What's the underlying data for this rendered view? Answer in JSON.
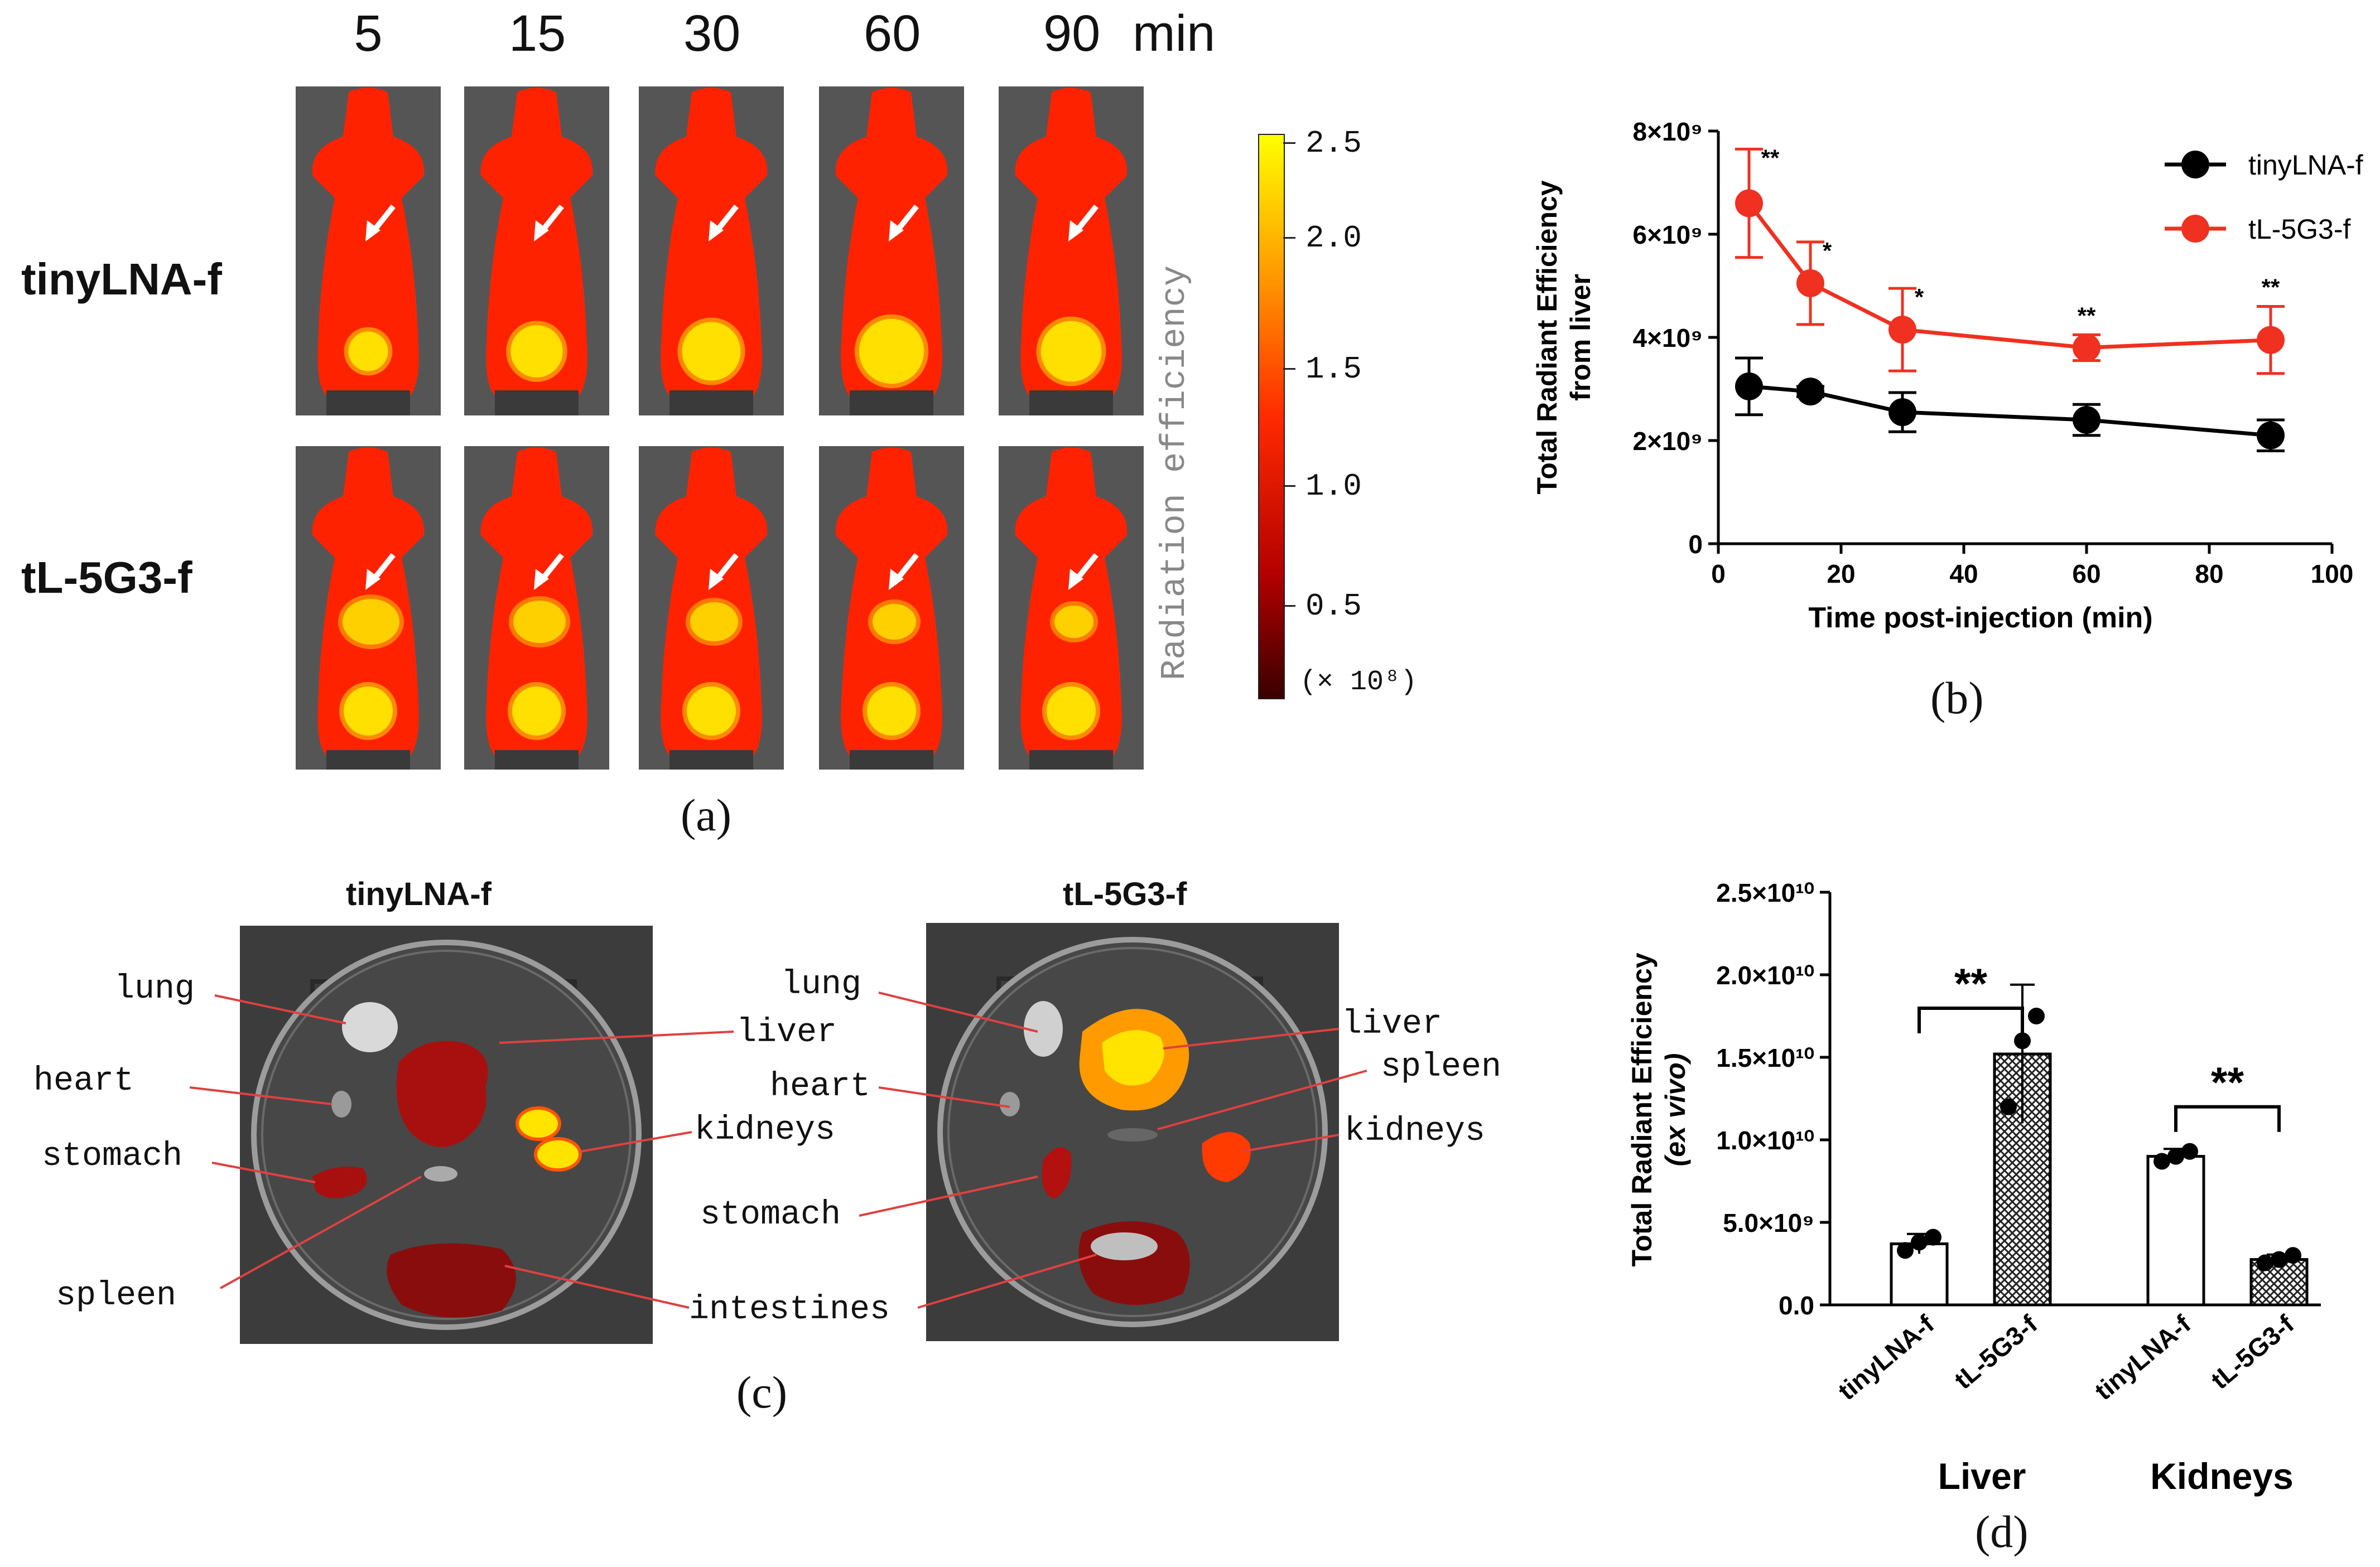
{
  "panel_a": {
    "times": [
      "5",
      "15",
      "30",
      "60",
      "90"
    ],
    "time_unit": "min",
    "rows": [
      "tinyLNA-f",
      "tL-5G3-f"
    ],
    "colorbar": {
      "title": "Radiation efficiency",
      "ticks": [
        "2.5",
        "2.0",
        "1.5",
        "1.0",
        "0.5"
      ],
      "scale_note": "(× 10⁸)",
      "colors": [
        "#ffff00",
        "#ff9900",
        "#ff2a00",
        "#b30000",
        "#3a0000"
      ]
    },
    "caption": "(a)"
  },
  "panel_b": {
    "caption": "(b)",
    "chart_data": {
      "type": "line",
      "ylabel_line1": "Total Radiant Efficiency",
      "ylabel_line2": "from liver",
      "xlabel": "Time post-injection (min)",
      "xlim": [
        0,
        100
      ],
      "ylim": [
        0,
        8000000000.0
      ],
      "x_ticks": [
        "0",
        "20",
        "40",
        "60",
        "80",
        "100"
      ],
      "y_ticks": [
        {
          "label": "0",
          "value": 0
        },
        {
          "label": "2×10⁹",
          "value": 2000000000.0
        },
        {
          "label": "4×10⁹",
          "value": 4000000000.0
        },
        {
          "label": "6×10⁹",
          "value": 6000000000.0
        },
        {
          "label": "8×10⁹",
          "value": 8000000000.0
        }
      ],
      "x": [
        5,
        15,
        30,
        60,
        90
      ],
      "series": [
        {
          "name": "tinyLNA-f",
          "color": "#000000",
          "values": [
            3050000000.0,
            2950000000.0,
            2550000000.0,
            2400000000.0,
            2100000000.0
          ],
          "errors": [
            550000000.0,
            100000000.0,
            380000000.0,
            300000000.0,
            300000000.0
          ]
        },
        {
          "name": "tL-5G3-f",
          "color": "#f03020",
          "values": [
            6600000000.0,
            5050000000.0,
            4150000000.0,
            3800000000.0,
            3950000000.0
          ],
          "errors": [
            1050000000.0,
            800000000.0,
            800000000.0,
            250000000.0,
            650000000.0
          ]
        }
      ],
      "significance": [
        "**",
        "*",
        "*",
        "**",
        "**"
      ]
    }
  },
  "panel_c": {
    "caption": "(c)",
    "groups": [
      "tinyLNA-f",
      "tL-5G3-f"
    ],
    "left_labels": {
      "lung": "lung",
      "heart": "heart",
      "stomach": "stomach",
      "spleen": "spleen",
      "liver": "liver",
      "kidneys": "kidneys",
      "intestines": "intestines"
    },
    "right_labels": {
      "lung": "lung",
      "heart": "heart",
      "stomach": "stomach",
      "liver": "liver",
      "spleen": "spleen",
      "kidneys": "kidneys"
    }
  },
  "panel_d": {
    "caption": "(d)",
    "chart_data": {
      "type": "bar",
      "ylabel_line1": "Total Radiant Efficiency",
      "ylabel_line2": "(ex vivo)",
      "ylim": [
        0,
        25000000000.0
      ],
      "y_ticks": [
        {
          "label": "0.0",
          "value": 0
        },
        {
          "label": "5.0×10⁹",
          "value": 5000000000.0
        },
        {
          "label": "1.0×10¹⁰",
          "value": 10000000000.0
        },
        {
          "label": "1.5×10¹⁰",
          "value": 15000000000.0
        },
        {
          "label": "2.0×10¹⁰",
          "value": 20000000000.0
        },
        {
          "label": "2.5×10¹⁰",
          "value": 25000000000.0
        }
      ],
      "groups": [
        "Liver",
        "Kidneys"
      ],
      "categories": [
        "tinyLNA-f",
        "tL-5G3-f",
        "tinyLNA-f",
        "tL-5G3-f"
      ],
      "values": [
        3700000000.0,
        15200000000.0,
        9000000000.0,
        2750000000.0
      ],
      "errors": [
        600000000.0,
        4200000000.0,
        450000000.0,
        300000000.0
      ],
      "points": [
        [
          3300000000.0,
          3800000000.0,
          4100000000.0
        ],
        [
          12000000000.0,
          16000000000.0,
          17500000000.0
        ],
        [
          8700000000.0,
          9000000000.0,
          9300000000.0
        ],
        [
          2550000000.0,
          2750000000.0,
          3000000000.0
        ]
      ],
      "patterns": [
        "open",
        "hatched",
        "open",
        "hatched"
      ],
      "significance": [
        "**",
        "**"
      ]
    }
  }
}
